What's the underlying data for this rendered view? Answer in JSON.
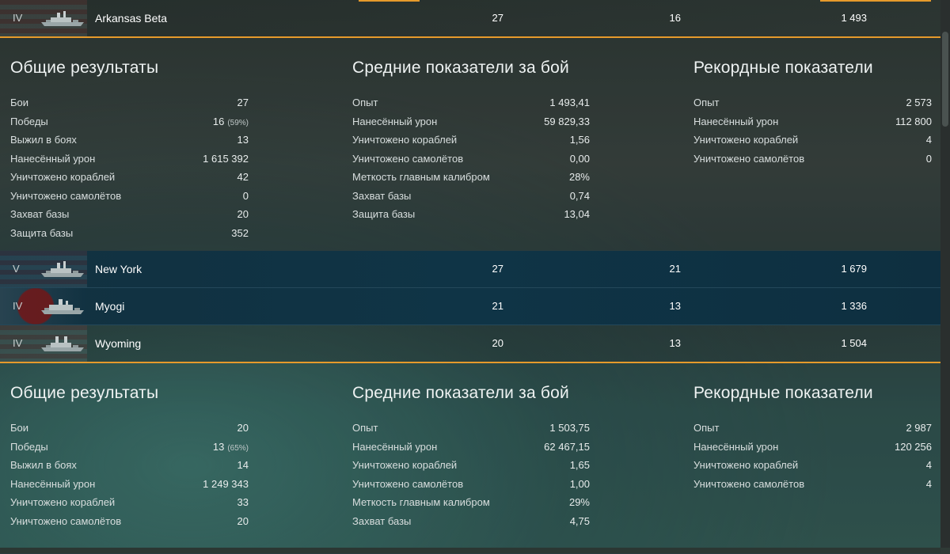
{
  "ships": [
    {
      "tier": "IV",
      "name": "Arkansas Beta",
      "battles": "27",
      "wins": "16",
      "avg_xp": "1 493",
      "state": "selected",
      "flag": "us"
    },
    {
      "tier": "V",
      "name": "New York",
      "battles": "27",
      "wins": "21",
      "avg_xp": "1 679",
      "state": "blue",
      "flag": "us"
    },
    {
      "tier": "IV",
      "name": "Myogi",
      "battles": "21",
      "wins": "13",
      "avg_xp": "1 336",
      "state": "blue",
      "flag": "jp"
    },
    {
      "tier": "IV",
      "name": "Wyoming",
      "battles": "20",
      "wins": "13",
      "avg_xp": "1 504",
      "state": "selected",
      "flag": "us"
    }
  ],
  "stats1": {
    "general": {
      "title": "Общие результаты",
      "rows": [
        {
          "label": "Бои",
          "value": "27"
        },
        {
          "label": "Победы",
          "value": "16",
          "pct": "(59%)"
        },
        {
          "label": "Выжил в боях",
          "value": "13"
        },
        {
          "label": "Нанесённый урон",
          "value": "1 615 392"
        },
        {
          "label": "Уничтожено кораблей",
          "value": "42"
        },
        {
          "label": "Уничтожено самолётов",
          "value": "0"
        },
        {
          "label": "Захват базы",
          "value": "20"
        },
        {
          "label": "Защита базы",
          "value": "352"
        }
      ]
    },
    "average": {
      "title": "Средние показатели за бой",
      "rows": [
        {
          "label": "Опыт",
          "value": "1 493,41"
        },
        {
          "label": "Нанесённый урон",
          "value": "59 829,33"
        },
        {
          "label": "Уничтожено кораблей",
          "value": "1,56"
        },
        {
          "label": "Уничтожено самолётов",
          "value": "0,00"
        },
        {
          "label": "Меткость главным калибром",
          "value": "28%"
        },
        {
          "label": "Захват базы",
          "value": "0,74"
        },
        {
          "label": "Защита базы",
          "value": "13,04"
        }
      ]
    },
    "records": {
      "title": "Рекордные показатели",
      "rows": [
        {
          "label": "Опыт",
          "value": "2 573"
        },
        {
          "label": "Нанесённый урон",
          "value": "112 800"
        },
        {
          "label": "Уничтожено кораблей",
          "value": "4"
        },
        {
          "label": "Уничтожено самолётов",
          "value": "0"
        }
      ]
    }
  },
  "stats2": {
    "general": {
      "title": "Общие результаты",
      "rows": [
        {
          "label": "Бои",
          "value": "20"
        },
        {
          "label": "Победы",
          "value": "13",
          "pct": "(65%)"
        },
        {
          "label": "Выжил в боях",
          "value": "14"
        },
        {
          "label": "Нанесённый урон",
          "value": "1 249 343"
        },
        {
          "label": "Уничтожено кораблей",
          "value": "33"
        },
        {
          "label": "Уничтожено самолётов",
          "value": "20"
        }
      ]
    },
    "average": {
      "title": "Средние показатели за бой",
      "rows": [
        {
          "label": "Опыт",
          "value": "1 503,75"
        },
        {
          "label": "Нанесённый урон",
          "value": "62 467,15"
        },
        {
          "label": "Уничтожено кораблей",
          "value": "1,65"
        },
        {
          "label": "Уничтожено самолётов",
          "value": "1,00"
        },
        {
          "label": "Меткость главным калибром",
          "value": "29%"
        },
        {
          "label": "Захват базы",
          "value": "4,75"
        }
      ]
    },
    "records": {
      "title": "Рекордные показатели",
      "rows": [
        {
          "label": "Опыт",
          "value": "2 987"
        },
        {
          "label": "Нанесённый урон",
          "value": "120 256"
        },
        {
          "label": "Уничтожено кораблей",
          "value": "4"
        },
        {
          "label": "Уничтожено самолётов",
          "value": "4"
        }
      ]
    }
  },
  "colors": {
    "accent": "#e69a2b",
    "selected_row_blue": "#0f3446"
  }
}
